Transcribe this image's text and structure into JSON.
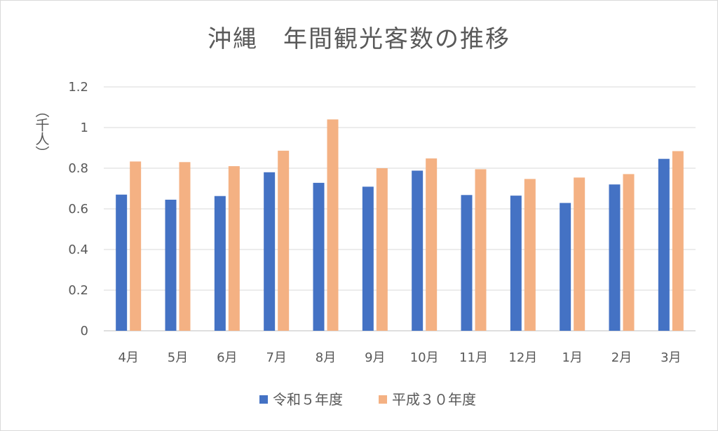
{
  "chart_data": {
    "type": "bar",
    "title": "沖縄　年間観光客数の推移",
    "ylabel": "（千人）",
    "categories": [
      "4月",
      "5月",
      "6月",
      "7月",
      "8月",
      "9月",
      "10月",
      "11月",
      "12月",
      "1月",
      "2月",
      "3月"
    ],
    "series": [
      {
        "name": "令和５年度",
        "color": "#4472C4",
        "values": [
          0.67,
          0.645,
          0.663,
          0.78,
          0.728,
          0.709,
          0.788,
          0.668,
          0.665,
          0.629,
          0.72,
          0.846
        ]
      },
      {
        "name": "平成３０年度",
        "color": "#F4B183",
        "values": [
          0.833,
          0.83,
          0.81,
          0.886,
          1.04,
          0.8,
          0.848,
          0.795,
          0.747,
          0.754,
          0.771,
          0.884
        ]
      }
    ],
    "yticks": [
      "0",
      "0.2",
      "0.4",
      "0.6",
      "0.8",
      "1",
      "1.2"
    ],
    "ylim": [
      0,
      1.2
    ],
    "grid": true,
    "legend": "bottom"
  }
}
